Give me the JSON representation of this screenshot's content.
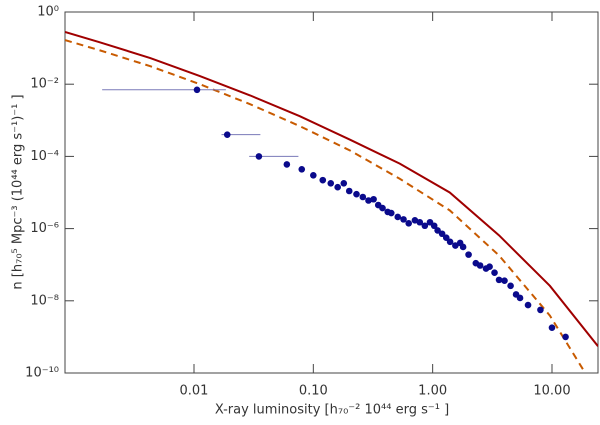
{
  "chart_data": {
    "type": "scatter",
    "x_label": "X-ray luminosity   [h₇₀⁻² 10⁴⁴ erg s⁻¹ ]",
    "y_label": "n [h₇₀⁵ Mpc⁻³ (10⁴⁴ erg s⁻¹)⁻¹ ]",
    "xscale": "log",
    "yscale": "log",
    "xlim": [
      0.00083,
      24.3
    ],
    "ylim": [
      1e-10,
      1
    ],
    "xticks": [
      {
        "value": 0.01,
        "label": "0.01"
      },
      {
        "value": 0.1,
        "label": "0.10"
      },
      {
        "value": 1,
        "label": "1.00"
      },
      {
        "value": 10,
        "label": "10.00"
      }
    ],
    "yticks": [
      {
        "value": 1,
        "label": "10⁰"
      },
      {
        "value": 0.01,
        "label": "10⁻²"
      },
      {
        "value": 0.0001,
        "label": "10⁻⁴"
      },
      {
        "value": 1e-06,
        "label": "10⁻⁶"
      },
      {
        "value": 1e-08,
        "label": "10⁻⁸"
      },
      {
        "value": 1e-10,
        "label": "10⁻¹⁰"
      }
    ],
    "series": [
      {
        "type": "scatter",
        "color": "#0a0a8c",
        "x": [
          0.0106,
          0.019,
          0.035,
          0.06,
          0.08,
          0.1,
          0.12,
          0.14,
          0.16,
          0.18,
          0.2,
          0.23,
          0.26,
          0.29,
          0.32,
          0.35,
          0.38,
          0.42,
          0.45,
          0.51,
          0.57,
          0.63,
          0.71,
          0.78,
          0.86,
          0.95,
          1.03,
          1.1,
          1.2,
          1.3,
          1.4,
          1.55,
          1.7,
          1.8,
          2.0,
          2.3,
          2.5,
          2.8,
          3.0,
          3.3,
          3.6,
          4.0,
          4.5,
          5.0,
          5.4,
          6.3,
          8.0,
          10,
          13
        ],
        "values": [
          0.007,
          0.0004,
          0.0001,
          6e-05,
          4.4e-05,
          3e-05,
          2.2e-05,
          1.8e-05,
          1.4e-05,
          1.8e-05,
          1.1e-05,
          9e-06,
          7.5e-06,
          6e-06,
          6.5e-06,
          4.5e-06,
          3.7e-06,
          2.9e-06,
          2.7e-06,
          2.1e-06,
          1.8e-06,
          1.4e-06,
          1.7e-06,
          1.5e-06,
          1.2e-06,
          1.5e-06,
          1.2e-06,
          8.9e-07,
          7.2e-07,
          5.6e-07,
          4.3e-07,
          3.4e-07,
          4e-07,
          3.1e-07,
          1.9e-07,
          1.1e-07,
          9.5e-08,
          7.8e-08,
          8.8e-08,
          6e-08,
          3.8e-08,
          3.6e-08,
          2.6e-08,
          1.5e-08,
          1.2e-08,
          7.6e-09,
          5.6e-09,
          1.8e-09,
          1e-09
        ],
        "x_low": [
          0.0017,
          0.017,
          0.029,
          null,
          null,
          null,
          null,
          null,
          null,
          null,
          null,
          null,
          null,
          null,
          null,
          null,
          null,
          null,
          null,
          null,
          null,
          null,
          null,
          null,
          null,
          null,
          null,
          null,
          null,
          null,
          null,
          null,
          null,
          null,
          null,
          null,
          null,
          null,
          null,
          null,
          null,
          null,
          null,
          null,
          null,
          null,
          null,
          null,
          null
        ],
        "x_high": [
          0.0185,
          0.036,
          0.075,
          null,
          null,
          null,
          null,
          null,
          null,
          null,
          null,
          null,
          null,
          null,
          null,
          null,
          null,
          null,
          null,
          null,
          null,
          null,
          null,
          null,
          null,
          null,
          null,
          null,
          null,
          null,
          null,
          null,
          null,
          null,
          null,
          null,
          null,
          null,
          null,
          null,
          null,
          null,
          null,
          null,
          null,
          null,
          null,
          null,
          null
        ]
      },
      {
        "type": "line",
        "color": "#a00000",
        "style": "solid",
        "x": [
          0.00083,
          0.0016,
          0.0043,
          0.0112,
          0.0295,
          0.077,
          0.203,
          0.53,
          1.39,
          3.6,
          9.6,
          24.3
        ],
        "values": [
          0.28,
          0.147,
          0.053,
          0.0168,
          0.0049,
          0.0013,
          0.00029,
          6.3e-05,
          1e-05,
          6.5e-07,
          2.6e-08,
          5.5e-10
        ]
      },
      {
        "type": "line",
        "color": "#c85a00",
        "style": "dashed",
        "x": [
          0.00083,
          0.0016,
          0.0043,
          0.0112,
          0.0295,
          0.077,
          0.203,
          0.53,
          1.39,
          3.6,
          9.6,
          19
        ],
        "values": [
          0.167,
          0.088,
          0.0316,
          0.01,
          0.0028,
          0.00069,
          0.000146,
          2.4e-05,
          3.2e-06,
          1.8e-07,
          3.9e-09,
          1e-10
        ]
      }
    ]
  }
}
